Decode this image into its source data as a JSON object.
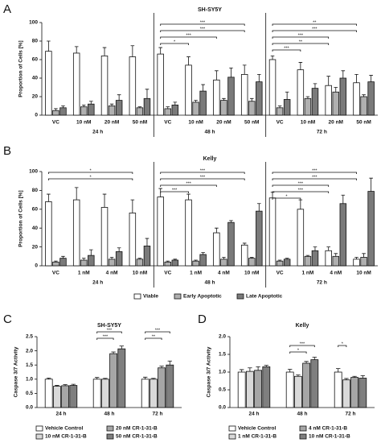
{
  "chart_data": [
    {
      "type": "bar",
      "panel": "A",
      "title": "SH-SY5Y",
      "y_label": "Proportion of Cells [%]",
      "categories": [
        "VC",
        "10 nM",
        "20 nM",
        "50 nM",
        "VC",
        "10 nM",
        "20 nM",
        "50 nM",
        "VC",
        "10 nM",
        "20 nM",
        "50 nM"
      ],
      "groups": [
        "24 h",
        "48 h",
        "72 h"
      ],
      "ylim": [
        0,
        100
      ],
      "yticks": [
        0,
        20,
        40,
        60,
        80,
        100
      ],
      "series": [
        {
          "color": "#ffffff",
          "values": [
            69,
            67,
            64,
            63,
            66,
            54,
            38,
            44,
            60,
            49,
            32,
            35
          ],
          "errors": [
            11,
            7,
            9,
            12,
            7,
            9,
            10,
            10,
            4,
            8,
            10,
            9
          ]
        },
        {
          "color": "#b0b0b0",
          "values": [
            5,
            9,
            10,
            8,
            7,
            14,
            16,
            15,
            8,
            18,
            25,
            20
          ],
          "errors": [
            2,
            2,
            2,
            1,
            2,
            2,
            2,
            3,
            2,
            2,
            5,
            2
          ]
        },
        {
          "color": "#7a7a7a",
          "values": [
            8,
            12,
            16,
            18,
            11,
            26,
            41,
            36,
            17,
            29,
            40,
            36
          ],
          "errors": [
            2,
            3,
            6,
            10,
            3,
            7,
            10,
            8,
            8,
            5,
            8,
            7
          ]
        }
      ],
      "brackets": [
        {
          "from": 4,
          "to": 7,
          "label": "***"
        },
        {
          "from": 4,
          "to": 7,
          "label": "***"
        },
        {
          "from": 4,
          "to": 6,
          "label": "***"
        },
        {
          "from": 4,
          "to": 5,
          "label": "*"
        },
        {
          "from": 8,
          "to": 11,
          "label": "**"
        },
        {
          "from": 8,
          "to": 11,
          "label": "***"
        },
        {
          "from": 8,
          "to": 10,
          "label": "***"
        },
        {
          "from": 8,
          "to": 10,
          "label": "**"
        },
        {
          "from": 8,
          "to": 9,
          "label": "***"
        }
      ]
    },
    {
      "type": "bar",
      "panel": "B",
      "title": "Kelly",
      "y_label": "Proportion of Cells [%]",
      "categories": [
        "VC",
        "1 nM",
        "4 nM",
        "10 nM",
        "VC",
        "1 nM",
        "4 nM",
        "10 nM",
        "VC",
        "1 nM",
        "4 nM",
        "10 nM"
      ],
      "groups": [
        "24 h",
        "48 h",
        "72 h"
      ],
      "ylim": [
        0,
        100
      ],
      "yticks": [
        0,
        20,
        40,
        60,
        80,
        100
      ],
      "series": [
        {
          "name": "Viable",
          "color": "#ffffff",
          "values": [
            68,
            70,
            62,
            56,
            73,
            70,
            35,
            22,
            72,
            60,
            16,
            7
          ],
          "errors": [
            8,
            13,
            14,
            14,
            9,
            6,
            5,
            2,
            6,
            10,
            4,
            2
          ]
        },
        {
          "name": "Early Apoptotic",
          "color": "#b0b0b0",
          "values": [
            4,
            6,
            7,
            7,
            4,
            5,
            7,
            8,
            5,
            10,
            10,
            9
          ],
          "errors": [
            1,
            2,
            2,
            1,
            1,
            1,
            2,
            1,
            1,
            1,
            3,
            4
          ]
        },
        {
          "name": "Late Apoptotic",
          "color": "#7a7a7a",
          "values": [
            8,
            11,
            15,
            21,
            6,
            12,
            46,
            58,
            7,
            16,
            66,
            79
          ],
          "errors": [
            2,
            6,
            4,
            8,
            1,
            2,
            2,
            8,
            1,
            4,
            9,
            14
          ]
        }
      ],
      "brackets": [
        {
          "from": 0,
          "to": 3,
          "label": "*"
        },
        {
          "from": 0,
          "to": 3,
          "label": "*"
        },
        {
          "from": 4,
          "to": 7,
          "label": "***"
        },
        {
          "from": 4,
          "to": 7,
          "label": "***"
        },
        {
          "from": 4,
          "to": 6,
          "label": "***"
        },
        {
          "from": 4,
          "to": 5,
          "label": "***"
        },
        {
          "from": 8,
          "to": 11,
          "label": "***"
        },
        {
          "from": 8,
          "to": 11,
          "label": "***"
        },
        {
          "from": 8,
          "to": 10,
          "label": "***"
        },
        {
          "from": 8,
          "to": 10,
          "label": "***"
        },
        {
          "from": 8,
          "to": 9,
          "label": "*"
        }
      ]
    },
    {
      "type": "bar",
      "panel": "C",
      "title": "SH-SY5Y",
      "y_label": "Caspase 3/7 Activity",
      "categories": [
        "24 h",
        "48 h",
        "72 h"
      ],
      "ylim": [
        0,
        2.5
      ],
      "yticks": [
        {
          "value": 0,
          "label": "0.0"
        },
        0.5,
        {
          "value": 1,
          "label": "1.0"
        },
        1.5,
        {
          "value": 2,
          "label": "2.0"
        },
        2.5
      ],
      "series": [
        {
          "name": "Vehicle Control",
          "color": "#ffffff",
          "values": [
            1.0,
            1.0,
            1.0
          ],
          "errors": [
            0.04,
            0.06,
            0.07
          ]
        },
        {
          "name": "10 nM CR-1-31-B",
          "color": "#d9d9d9",
          "values": [
            0.75,
            1.0,
            1.0
          ],
          "errors": [
            0.03,
            0.03,
            0.03
          ]
        },
        {
          "name": "20 nM CR-1-31-B",
          "color": "#a6a6a6",
          "values": [
            0.77,
            1.9,
            1.4
          ],
          "errors": [
            0.04,
            0.06,
            0.06
          ]
        },
        {
          "name": "50 nM CR-1-31-B",
          "color": "#7f7f7f",
          "values": [
            0.78,
            2.07,
            1.5
          ],
          "errors": [
            0.04,
            0.1,
            0.14
          ]
        }
      ],
      "brackets": [
        {
          "category": 1,
          "from": 0,
          "to": 3,
          "label": "***"
        },
        {
          "category": 1,
          "from": 0,
          "to": 2,
          "label": "***"
        },
        {
          "category": 2,
          "from": 0,
          "to": 3,
          "label": "***"
        },
        {
          "category": 2,
          "from": 0,
          "to": 2,
          "label": "**"
        }
      ]
    },
    {
      "type": "bar",
      "panel": "D",
      "title": "Kelly",
      "y_label": "Caspase 3/7 Activity",
      "categories": [
        "24 h",
        "48 h",
        "72 h"
      ],
      "ylim": [
        0,
        2
      ],
      "yticks": [
        {
          "value": 0,
          "label": "0.0"
        },
        0.5,
        {
          "value": 1,
          "label": "1.0"
        },
        1.5,
        {
          "value": 2,
          "label": "2.0"
        }
      ],
      "series": [
        {
          "name": "Vehicle Control",
          "color": "#ffffff",
          "values": [
            1.0,
            1.0,
            1.0
          ],
          "errors": [
            0.07,
            0.08,
            0.1
          ]
        },
        {
          "name": "1 nM CR-1-31-B",
          "color": "#d9d9d9",
          "values": [
            1.02,
            0.88,
            0.78
          ],
          "errors": [
            0.1,
            0.04,
            0.04
          ]
        },
        {
          "name": "4 nM CR-1-31-B",
          "color": "#a6a6a6",
          "values": [
            1.05,
            1.25,
            0.85
          ],
          "errors": [
            0.1,
            0.05,
            0.03
          ]
        },
        {
          "name": "10 nM CR-1-31-B",
          "color": "#7f7f7f",
          "values": [
            1.15,
            1.35,
            0.83
          ],
          "errors": [
            0.04,
            0.07,
            0.07
          ]
        }
      ],
      "brackets": [
        {
          "category": 1,
          "from": 0,
          "to": 3,
          "label": "***"
        },
        {
          "category": 1,
          "from": 0,
          "to": 2,
          "label": "*"
        },
        {
          "category": 2,
          "from": 0,
          "to": 1,
          "label": "*"
        }
      ]
    }
  ]
}
